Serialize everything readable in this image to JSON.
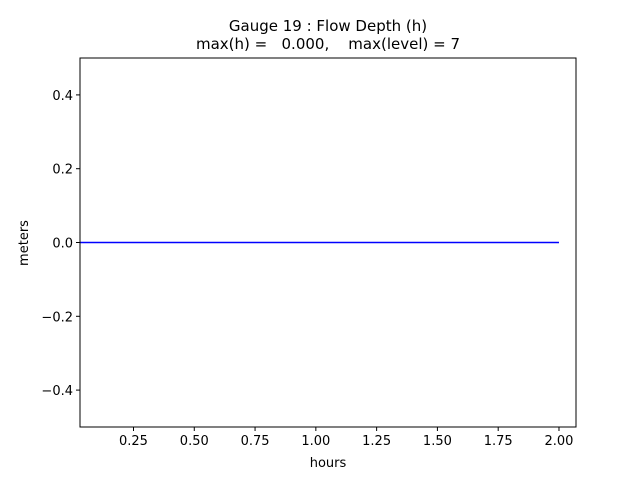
{
  "chart_data": {
    "type": "line",
    "title_lines": [
      "Gauge 19 : Flow Depth (h)",
      "max(h) =   0.000,    max(level) = 7"
    ],
    "xlabel": "hours",
    "ylabel": "meters",
    "xlim": [
      0.03,
      2.07
    ],
    "ylim": [
      -0.5,
      0.5
    ],
    "xticks": [
      0.25,
      0.5,
      0.75,
      1.0,
      1.25,
      1.5,
      1.75,
      2.0
    ],
    "xtick_labels": [
      "0.25",
      "0.50",
      "0.75",
      "1.00",
      "1.25",
      "1.50",
      "1.75",
      "2.00"
    ],
    "yticks": [
      -0.4,
      -0.2,
      0.0,
      0.2,
      0.4
    ],
    "ytick_labels": [
      "−0.4",
      "−0.2",
      "0.0",
      "0.2",
      "0.4"
    ],
    "grid": false,
    "series": [
      {
        "color": "#0000ff",
        "x": [
          0.0,
          0.25,
          0.5,
          0.75,
          1.0,
          1.25,
          1.5,
          1.75,
          2.0
        ],
        "y": [
          0,
          0,
          0,
          0,
          0,
          0,
          0,
          0,
          0
        ]
      }
    ]
  }
}
